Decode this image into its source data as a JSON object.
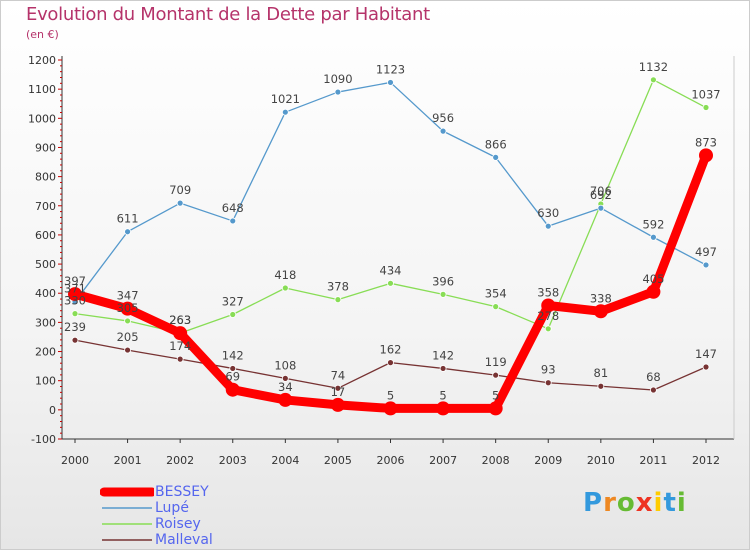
{
  "header": {
    "title": "Evolution du Montant de la Dette par Habitant",
    "unit": "(en €)"
  },
  "chart_data": {
    "type": "line",
    "x": [
      "2000",
      "2001",
      "2002",
      "2003",
      "2004",
      "2005",
      "2006",
      "2007",
      "2008",
      "2009",
      "2010",
      "2011",
      "2012"
    ],
    "ylim": [
      -100,
      1200
    ],
    "yticks": [
      "-100",
      "0",
      "100",
      "200",
      "300",
      "400",
      "500",
      "600",
      "700",
      "800",
      "900",
      "1000",
      "1100",
      "1200"
    ],
    "grid": false,
    "legend_position": "bottom-left",
    "series": [
      {
        "name": "BESSEY",
        "color": "#ff0000",
        "values": [
          397,
          347,
          263,
          69,
          34,
          17,
          5,
          5,
          5,
          358,
          338,
          405,
          873
        ],
        "labels": [
          "397",
          "347",
          "263",
          "69",
          "34",
          "17",
          "5",
          "5",
          "5",
          "358",
          "338",
          "405",
          "873"
        ]
      },
      {
        "name": "Lupé",
        "color": "#5599cc",
        "values": [
          371,
          611,
          709,
          648,
          1021,
          1090,
          1123,
          956,
          866,
          630,
          692,
          592,
          497
        ],
        "labels": [
          "371",
          "611",
          "709",
          "648",
          "1021",
          "1090",
          "1123",
          "956",
          "866",
          "630",
          "692",
          "592",
          "497"
        ]
      },
      {
        "name": "Roisey",
        "color": "#88dd55",
        "values": [
          330,
          305,
          263,
          327,
          418,
          378,
          434,
          396,
          354,
          278,
          706,
          1132,
          1037
        ],
        "labels": [
          "330",
          "305",
          "263",
          "327",
          "418",
          "378",
          "434",
          "396",
          "354",
          "278",
          "706",
          "1132",
          "1037"
        ]
      },
      {
        "name": "Malleval",
        "color": "#773333",
        "values": [
          239,
          205,
          174,
          142,
          108,
          74,
          162,
          142,
          119,
          93,
          81,
          68,
          147
        ],
        "labels": [
          "239",
          "205",
          "174",
          "142",
          "108",
          "74",
          "162",
          "142",
          "119",
          "93",
          "81",
          "68",
          "147"
        ]
      }
    ]
  },
  "logo": {
    "letters": [
      "P",
      "r",
      "o",
      "x",
      "i",
      "t",
      "i"
    ],
    "colors": [
      "#3399dd",
      "#ee8822",
      "#66bb33",
      "#ee3322",
      "#ffcc00",
      "#3399dd",
      "#66bb33"
    ]
  }
}
